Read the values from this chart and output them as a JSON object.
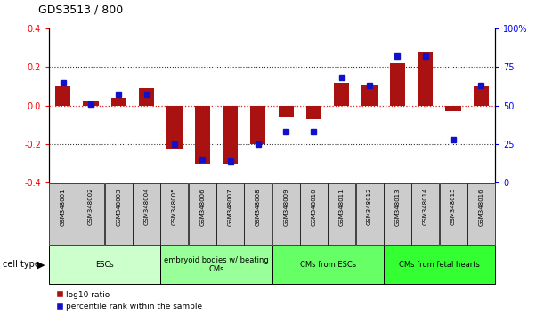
{
  "title": "GDS3513 / 800",
  "samples": [
    "GSM348001",
    "GSM348002",
    "GSM348003",
    "GSM348004",
    "GSM348005",
    "GSM348006",
    "GSM348007",
    "GSM348008",
    "GSM348009",
    "GSM348010",
    "GSM348011",
    "GSM348012",
    "GSM348013",
    "GSM348014",
    "GSM348015",
    "GSM348016"
  ],
  "log10_ratio": [
    0.1,
    0.02,
    0.04,
    0.09,
    -0.23,
    -0.3,
    -0.3,
    -0.2,
    -0.06,
    -0.07,
    0.12,
    0.11,
    0.22,
    0.28,
    -0.03,
    0.1
  ],
  "percentile_rank": [
    65,
    51,
    57,
    57,
    25,
    15,
    14,
    25,
    33,
    33,
    68,
    63,
    82,
    82,
    28,
    63
  ],
  "cell_type_groups": [
    {
      "label": "ESCs",
      "start": 0,
      "end": 3,
      "color": "#ccffcc"
    },
    {
      "label": "embryoid bodies w/ beating\nCMs",
      "start": 4,
      "end": 7,
      "color": "#99ff99"
    },
    {
      "label": "CMs from ESCs",
      "start": 8,
      "end": 11,
      "color": "#66ff66"
    },
    {
      "label": "CMs from fetal hearts",
      "start": 12,
      "end": 15,
      "color": "#33ff33"
    }
  ],
  "ylim_left": [
    -0.4,
    0.4
  ],
  "ylim_right": [
    0,
    100
  ],
  "yticks_left": [
    -0.4,
    -0.2,
    0.0,
    0.2,
    0.4
  ],
  "yticks_right": [
    0,
    25,
    50,
    75,
    100
  ],
  "ytick_labels_right": [
    "0",
    "25",
    "50",
    "75",
    "100%"
  ],
  "bar_color_red": "#aa1111",
  "bar_color_blue": "#1111cc",
  "zero_line_color": "#dd2222",
  "dotted_line_color": "#333333",
  "bg_color": "#ffffff",
  "sample_box_color": "#cccccc",
  "legend_red": "log10 ratio",
  "legend_blue": "percentile rank within the sample",
  "cell_type_label": "cell type"
}
